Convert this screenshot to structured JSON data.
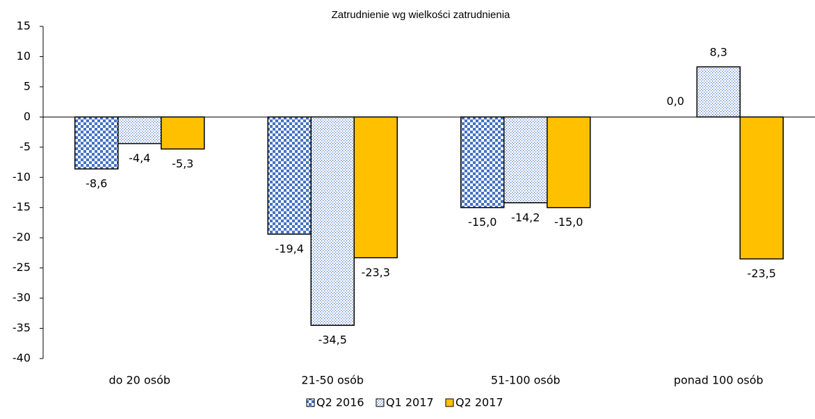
{
  "chart_data": {
    "type": "bar",
    "title": "Zatrudnienie wg wielkości zatrudnienia",
    "categories": [
      "do 20 osób",
      "21-50 osób",
      "51-100 osób",
      "ponad 100 osób"
    ],
    "series": [
      {
        "name": "Q2 2016",
        "color": "#4472c4",
        "pattern": "checker",
        "values": [
          -8.6,
          -19.4,
          -15.0,
          0.0
        ],
        "value_labels": [
          "-8,6",
          "-19,4",
          "-15,0",
          "0,0"
        ]
      },
      {
        "name": "Q1 2017",
        "color": "#4472c4",
        "pattern": "dots",
        "values": [
          -4.4,
          -34.5,
          -14.2,
          8.3
        ],
        "value_labels": [
          "-4,4",
          "-34,5",
          "-14,2",
          "8,3"
        ]
      },
      {
        "name": "Q2 2017",
        "color": "#ffc000",
        "pattern": "solid",
        "values": [
          -5.3,
          -23.3,
          -15.0,
          -23.5
        ],
        "value_labels": [
          "-5,3",
          "-23,3",
          "-15,0",
          "-23,5"
        ]
      }
    ],
    "ylim": [
      -40,
      15
    ],
    "yticks": [
      -40,
      -35,
      -30,
      -25,
      -20,
      -15,
      -10,
      -5,
      0,
      5,
      10,
      15
    ],
    "grid": false,
    "legend": "bottom"
  }
}
